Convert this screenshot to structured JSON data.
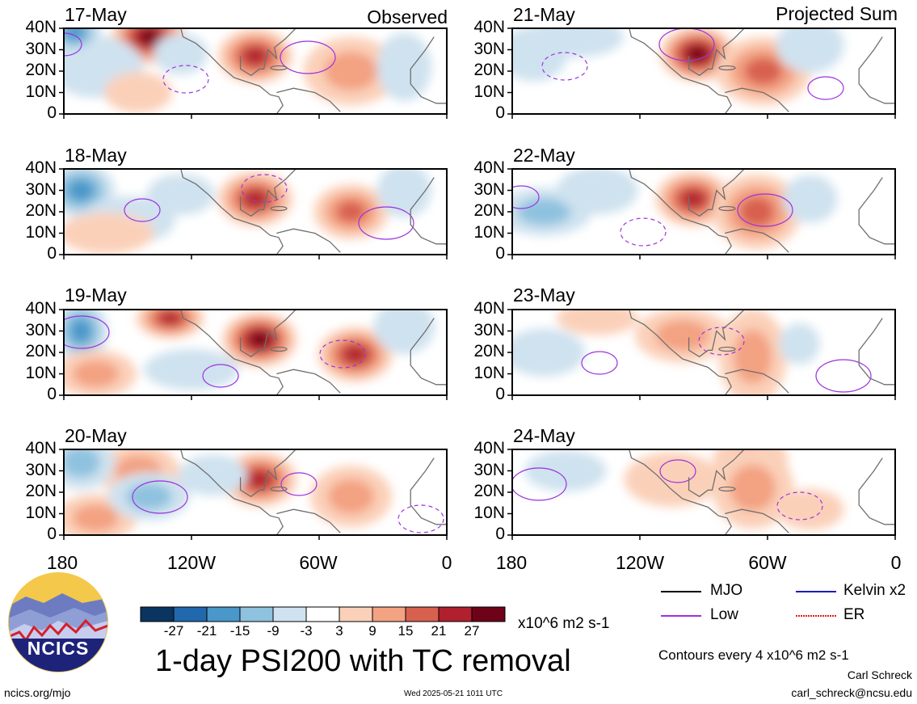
{
  "panels": {
    "observed_tag": "Observed",
    "projected_tag": "Projected Sum",
    "left_dates": [
      "17-May",
      "18-May",
      "19-May",
      "20-May"
    ],
    "right_dates": [
      "21-May",
      "22-May",
      "23-May",
      "24-May"
    ],
    "lat_ticks": [
      "40N",
      "30N",
      "20N",
      "10N",
      "0"
    ],
    "lon_ticks": [
      "180",
      "120W",
      "60W",
      "0"
    ]
  },
  "colorbar": {
    "labels": [
      "-27",
      "-21",
      "-15",
      "-9",
      "-3",
      "3",
      "9",
      "15",
      "21",
      "27"
    ],
    "colors": [
      "#0a3560",
      "#2168ad",
      "#4a97c9",
      "#8fc2df",
      "#cfe2ef",
      "#ffffff",
      "#fbd0b9",
      "#f3a282",
      "#d8604f",
      "#b0202e",
      "#6e0218"
    ],
    "units": "x10^6 m2 s-1"
  },
  "legend": {
    "items": [
      {
        "label": "MJO",
        "color": "#000000",
        "style": "solid"
      },
      {
        "label": "Kelvin x2",
        "color": "#1b1bbf",
        "style": "solid"
      },
      {
        "label": "Low",
        "color": "#9c33de",
        "style": "solid"
      },
      {
        "label": "ER",
        "color": "#e01a1a",
        "style": "dotted"
      }
    ],
    "contour_note": "Contours every 4 x10^6 m2 s-1"
  },
  "title": "1-day PSI200 with TC removal",
  "footer": {
    "url": "ncics.org/mjo",
    "timestamp": "Wed 2025-05-21 1011 UTC",
    "author": "Carl Schreck",
    "email": "carl_schreck@ncsu.edu"
  },
  "logo": {
    "text": "NCICS"
  },
  "chart_data": {
    "type": "heatmap",
    "title": "1-day PSI200 with TC removal",
    "variable": "PSI200 (TC removed)",
    "units": "x10^6 m2 s-1",
    "color_levels": [
      -27,
      -21,
      -15,
      -9,
      -3,
      3,
      9,
      15,
      21,
      27
    ],
    "lon_range": [
      "180",
      "0"
    ],
    "lat_range": [
      "0",
      "40N"
    ],
    "observed_dates": [
      "17-May",
      "18-May",
      "19-May",
      "20-May"
    ],
    "projected_dates": [
      "21-May",
      "22-May",
      "23-May",
      "24-May"
    ],
    "contour_interval": 4,
    "contour_types": [
      "MJO",
      "Kelvin x2",
      "Low",
      "ER"
    ],
    "dominant_features": [
      {
        "date": "17-May",
        "lon": -90,
        "lat": 27,
        "value": 24
      },
      {
        "date": "17-May",
        "lon": -140,
        "lat": 36,
        "value": 27
      },
      {
        "date": "18-May",
        "lon": -90,
        "lat": 26,
        "value": 21
      },
      {
        "date": "18-May",
        "lon": -45,
        "lat": 20,
        "value": 20
      },
      {
        "date": "19-May",
        "lon": -88,
        "lat": 26,
        "value": 27
      },
      {
        "date": "19-May",
        "lon": -43,
        "lat": 19,
        "value": 21
      },
      {
        "date": "20-May",
        "lon": -88,
        "lat": 26,
        "value": 22
      },
      {
        "date": "21-May",
        "lon": -93,
        "lat": 28,
        "value": 27
      },
      {
        "date": "22-May",
        "lon": -95,
        "lat": 26,
        "value": 21
      },
      {
        "date": "24-May",
        "lon": -68,
        "lat": 35,
        "value": 12
      }
    ]
  }
}
